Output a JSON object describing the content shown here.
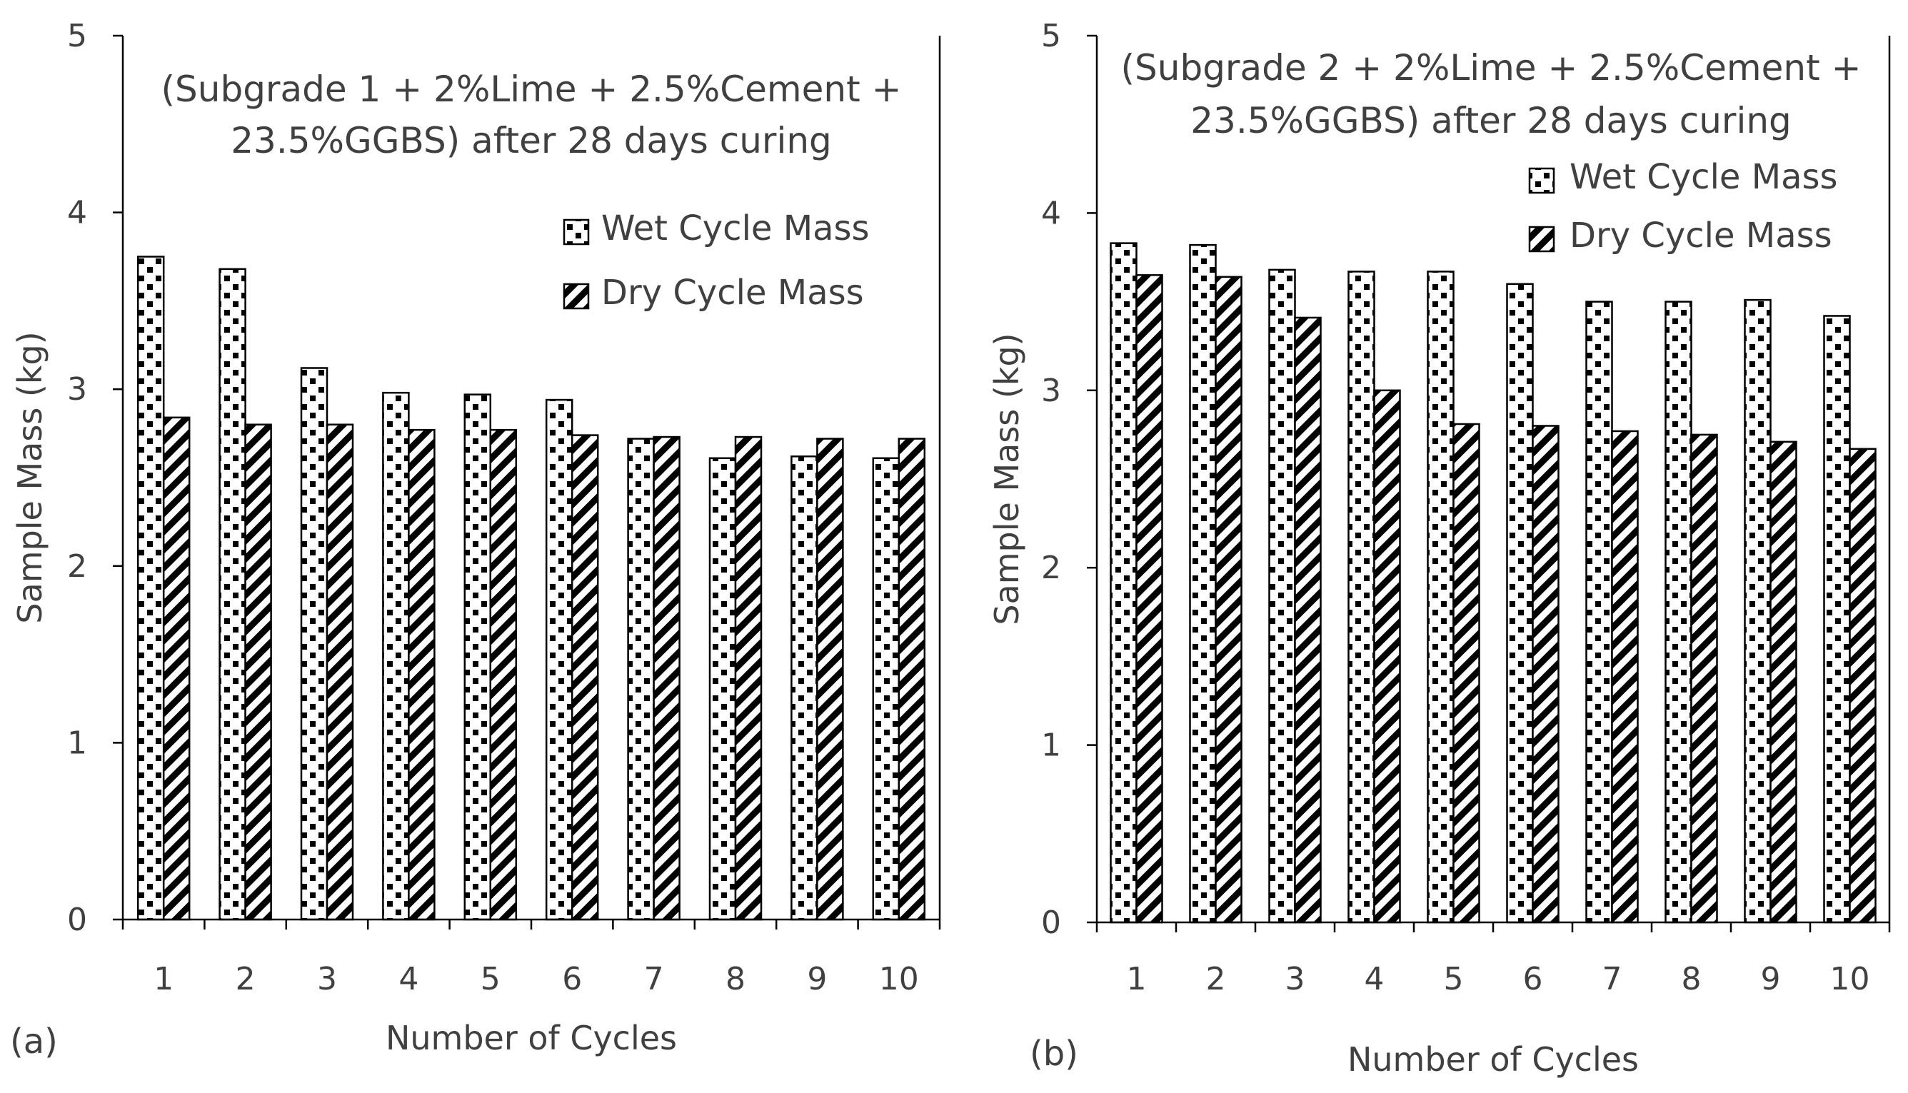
{
  "colors": {
    "axis": "#000000",
    "text": "#404040",
    "background": "#ffffff",
    "bar_fill": "#ffffff",
    "bar_pattern": "#000000"
  },
  "chart_data": [
    {
      "panel_label": "(a)",
      "type": "bar",
      "title_lines": [
        "(Subgrade 1 + 2%Lime + 2.5%Cement +",
        "23.5%GGBS) after 28 days curing"
      ],
      "xlabel": "Number of Cycles",
      "ylabel": "Sample Mass  (kg)",
      "ylim": [
        0,
        5
      ],
      "yticks": [
        "0",
        "1",
        "2",
        "3",
        "4",
        "5"
      ],
      "categories": [
        "1",
        "2",
        "3",
        "4",
        "5",
        "6",
        "7",
        "8",
        "9",
        "10"
      ],
      "series": [
        {
          "name": "Wet Cycle Mass",
          "pattern": "dots",
          "values": [
            3.75,
            3.68,
            3.12,
            2.98,
            2.97,
            2.94,
            2.72,
            2.61,
            2.62,
            2.61
          ]
        },
        {
          "name": "Dry Cycle Mass",
          "pattern": "stripes",
          "values": [
            2.84,
            2.8,
            2.8,
            2.77,
            2.77,
            2.74,
            2.73,
            2.73,
            2.72,
            2.72
          ]
        }
      ],
      "legend": "top-right"
    },
    {
      "panel_label": "(b)",
      "type": "bar",
      "title_lines": [
        "(Subgrade 2 + 2%Lime + 2.5%Cement +",
        "23.5%GGBS) after 28 days curing"
      ],
      "xlabel": "Number of Cycles",
      "ylabel": "Sample Mass  (kg)",
      "ylim": [
        0,
        5
      ],
      "yticks": [
        "0",
        "1",
        "2",
        "3",
        "4",
        "5"
      ],
      "categories": [
        "1",
        "2",
        "3",
        "4",
        "5",
        "6",
        "7",
        "8",
        "9",
        "10"
      ],
      "series": [
        {
          "name": "Wet Cycle Mass",
          "pattern": "dots",
          "values": [
            3.83,
            3.82,
            3.68,
            3.67,
            3.67,
            3.6,
            3.5,
            3.5,
            3.51,
            3.42
          ]
        },
        {
          "name": "Dry Cycle Mass",
          "pattern": "stripes",
          "values": [
            3.65,
            3.64,
            3.41,
            3.0,
            2.81,
            2.8,
            2.77,
            2.75,
            2.71,
            2.67
          ]
        }
      ],
      "legend": "top-right"
    }
  ]
}
